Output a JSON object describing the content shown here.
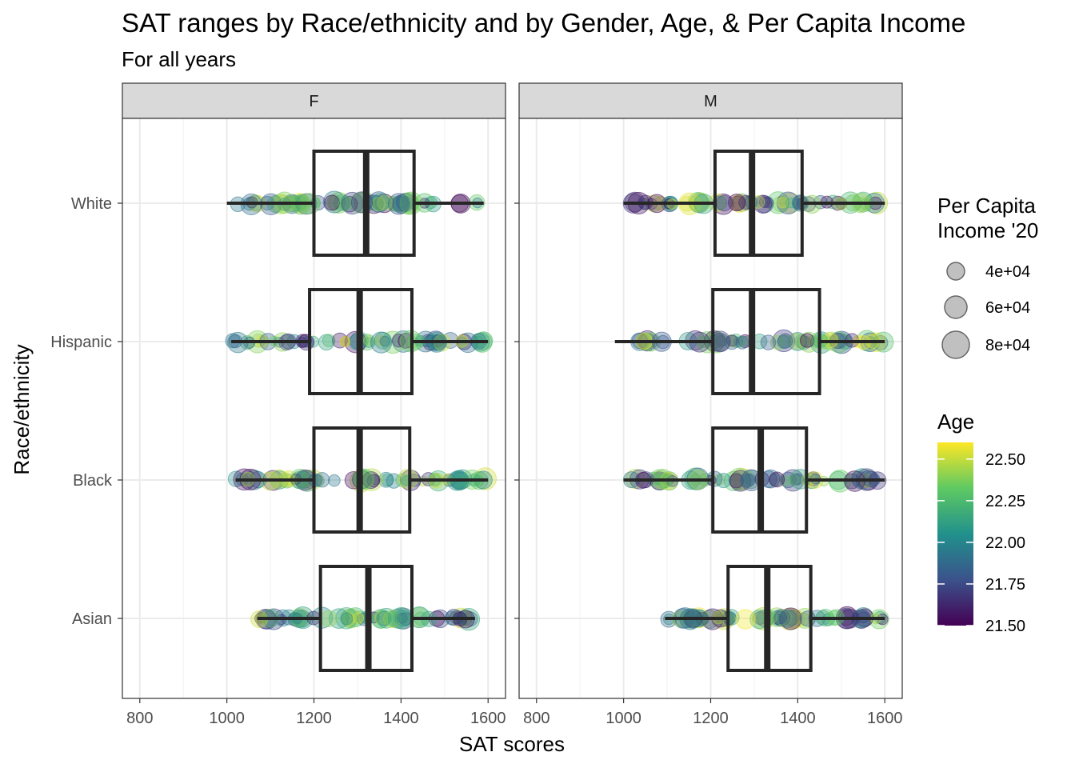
{
  "chart_data": {
    "type": "scatter",
    "title": "SAT ranges by Race/ethnicity and by Gender, Age, & Per Capita Income",
    "subtitle": "For all years",
    "xlabel": "SAT scores",
    "ylabel": "Race/ethnicity",
    "xlim": [
      760,
      1640
    ],
    "x_ticks": [
      800,
      1000,
      1200,
      1400,
      1600
    ],
    "x_tick_labels": [
      "800",
      "1000",
      "1200",
      "1400",
      "1600"
    ],
    "categories": [
      "White",
      "Hispanic",
      "Black",
      "Asian"
    ],
    "grid": true,
    "facets": [
      {
        "label": "F",
        "boxes": [
          {
            "category": "White",
            "min": 1000,
            "q1": 1200,
            "median": 1320,
            "q3": 1430,
            "max": 1590
          },
          {
            "category": "Hispanic",
            "min": 1010,
            "q1": 1190,
            "median": 1305,
            "q3": 1425,
            "max": 1600
          },
          {
            "category": "Black",
            "min": 1020,
            "q1": 1200,
            "median": 1305,
            "q3": 1420,
            "max": 1600
          },
          {
            "category": "Asian",
            "min": 1070,
            "q1": 1215,
            "median": 1325,
            "q3": 1425,
            "max": 1570
          }
        ]
      },
      {
        "label": "M",
        "boxes": [
          {
            "category": "White",
            "min": 1000,
            "q1": 1210,
            "median": 1295,
            "q3": 1410,
            "max": 1600
          },
          {
            "category": "Hispanic",
            "min": 980,
            "q1": 1205,
            "median": 1295,
            "q3": 1450,
            "max": 1600
          },
          {
            "category": "Black",
            "min": 1000,
            "q1": 1205,
            "median": 1315,
            "q3": 1420,
            "max": 1600
          },
          {
            "category": "Asian",
            "min": 1095,
            "q1": 1240,
            "median": 1330,
            "q3": 1430,
            "max": 1600
          }
        ]
      }
    ],
    "point_encoding": {
      "color": "Age",
      "size": "Per Capita Income '20"
    },
    "legend_placement": "right",
    "legends": [
      {
        "type": "size",
        "title": "Per Capita Income '20",
        "title_lines": [
          "Per Capita",
          "Income '20"
        ],
        "entries": [
          {
            "label": "4e+04",
            "value": 40000
          },
          {
            "label": "6e+04",
            "value": 60000
          },
          {
            "label": "8e+04",
            "value": 80000
          }
        ]
      },
      {
        "type": "colorbar",
        "title": "Age",
        "range": [
          21.5,
          22.6
        ],
        "ticks": [
          {
            "label": "22.50",
            "value": 22.5
          },
          {
            "label": "22.25",
            "value": 22.25
          },
          {
            "label": "22.00",
            "value": 22.0
          },
          {
            "label": "21.75",
            "value": 21.75
          },
          {
            "label": "21.50",
            "value": 21.5
          }
        ],
        "colors": [
          "#440154",
          "#3b528b",
          "#21918c",
          "#5ec962",
          "#fde725"
        ]
      }
    ]
  }
}
